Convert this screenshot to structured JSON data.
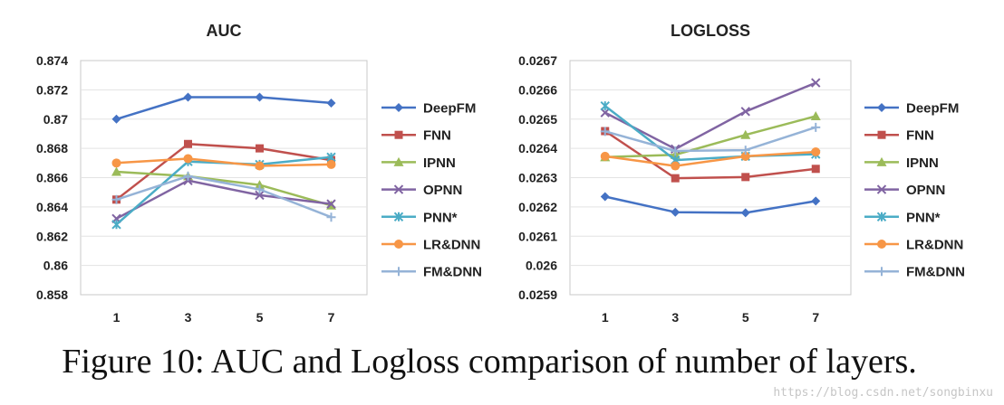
{
  "chart_data": [
    {
      "type": "line",
      "title": "AUC",
      "xlabel": "",
      "ylabel": "",
      "x": [
        1,
        3,
        5,
        7
      ],
      "ylim": [
        0.858,
        0.874
      ],
      "yticks": [
        "0.874",
        "0.872",
        "0.87",
        "0.868",
        "0.866",
        "0.864",
        "0.862",
        "0.86",
        "0.858"
      ],
      "legend_position": "right",
      "series": [
        {
          "name": "DeepFM",
          "values": [
            0.87,
            0.8715,
            0.8715,
            0.8711
          ],
          "color": "#4472c4",
          "marker": "diamond"
        },
        {
          "name": "FNN",
          "values": [
            0.8645,
            0.8683,
            0.868,
            0.8672
          ],
          "color": "#c0504d",
          "marker": "square"
        },
        {
          "name": "IPNN",
          "values": [
            0.8664,
            0.8661,
            0.8655,
            0.8641
          ],
          "color": "#9bbb59",
          "marker": "triangle"
        },
        {
          "name": "OPNN",
          "values": [
            0.8632,
            0.8658,
            0.8648,
            0.8642
          ],
          "color": "#8064a2",
          "marker": "x"
        },
        {
          "name": "PNN*",
          "values": [
            0.8628,
            0.8671,
            0.8669,
            0.8674
          ],
          "color": "#4bacc6",
          "marker": "star"
        },
        {
          "name": "LR&DNN",
          "values": [
            0.867,
            0.8673,
            0.8668,
            0.8669
          ],
          "color": "#f79646",
          "marker": "circle"
        },
        {
          "name": "FM&DNN",
          "values": [
            0.8645,
            0.8661,
            0.8652,
            0.8633
          ],
          "color": "#95b3d7",
          "marker": "plus"
        }
      ]
    },
    {
      "type": "line",
      "title": "LOGLOSS",
      "xlabel": "",
      "ylabel": "",
      "x": [
        1,
        3,
        5,
        7
      ],
      "ylim": [
        0.0259,
        0.0267
      ],
      "yticks": [
        "0.0267",
        "0.0266",
        "0.0265",
        "0.0264",
        "0.0263",
        "0.0262",
        "0.0261",
        "0.026",
        "0.0259"
      ],
      "legend_position": "right",
      "series": [
        {
          "name": "DeepFM",
          "values": [
            0.026235,
            0.026182,
            0.02618,
            0.02622
          ],
          "color": "#4472c4",
          "marker": "diamond"
        },
        {
          "name": "FNN",
          "values": [
            0.026459,
            0.026298,
            0.026302,
            0.02633
          ],
          "color": "#c0504d",
          "marker": "square"
        },
        {
          "name": "IPNN",
          "values": [
            0.02637,
            0.026378,
            0.026446,
            0.02651
          ],
          "color": "#9bbb59",
          "marker": "triangle"
        },
        {
          "name": "OPNN",
          "values": [
            0.026522,
            0.026398,
            0.026526,
            0.026624
          ],
          "color": "#8064a2",
          "marker": "x"
        },
        {
          "name": "PNN*",
          "values": [
            0.026545,
            0.02636,
            0.026373,
            0.02638
          ],
          "color": "#4bacc6",
          "marker": "star"
        },
        {
          "name": "LR&DNN",
          "values": [
            0.026373,
            0.02634,
            0.026373,
            0.026388
          ],
          "color": "#f79646",
          "marker": "circle"
        },
        {
          "name": "FM&DNN",
          "values": [
            0.026458,
            0.026391,
            0.026394,
            0.026472
          ],
          "color": "#95b3d7",
          "marker": "plus"
        }
      ]
    }
  ],
  "caption": "Figure 10:  AUC and Logloss comparison of number of layers.",
  "watermark": "https://blog.csdn.net/songbinxu"
}
